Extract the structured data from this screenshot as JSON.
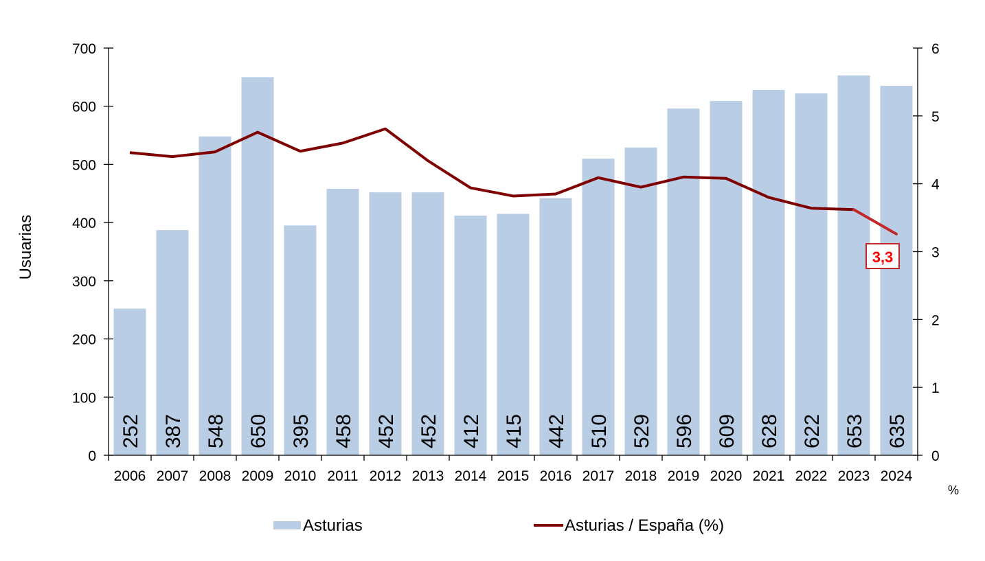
{
  "chart_data": {
    "type": "bar+line",
    "categories": [
      "2006",
      "2007",
      "2008",
      "2009",
      "2010",
      "2011",
      "2012",
      "2013",
      "2014",
      "2015",
      "2016",
      "2017",
      "2018",
      "2019",
      "2020",
      "2021",
      "2022",
      "2023",
      "2024"
    ],
    "series": [
      {
        "name": "Asturias",
        "type": "bar",
        "axis": "left",
        "color": "#b9cde5",
        "values": [
          252,
          387,
          548,
          650,
          395,
          458,
          452,
          452,
          412,
          415,
          442,
          510,
          529,
          596,
          609,
          628,
          622,
          653,
          635
        ]
      },
      {
        "name": "Asturias / España (%)",
        "type": "line",
        "axis": "right",
        "color": "#7f0000",
        "last_segment_color": "#c0282a",
        "values": [
          4.46,
          4.4,
          4.47,
          4.76,
          4.48,
          4.6,
          4.81,
          4.34,
          3.94,
          3.82,
          3.85,
          4.09,
          3.95,
          4.1,
          4.08,
          3.8,
          3.64,
          3.62,
          3.26
        ]
      }
    ],
    "ylabel": "Usuarias",
    "ylim": [
      0,
      700
    ],
    "yticks": [
      "0",
      "100",
      "200",
      "300",
      "400",
      "500",
      "600",
      "700"
    ],
    "y2label": "%",
    "y2lim": [
      0,
      6
    ],
    "y2ticks": [
      "0",
      "1",
      "2",
      "3",
      "4",
      "5",
      "6"
    ],
    "annotation": {
      "text": "3,3",
      "category": "2024",
      "color": "#ff0000"
    },
    "legend_position": "bottom",
    "grid": false
  }
}
